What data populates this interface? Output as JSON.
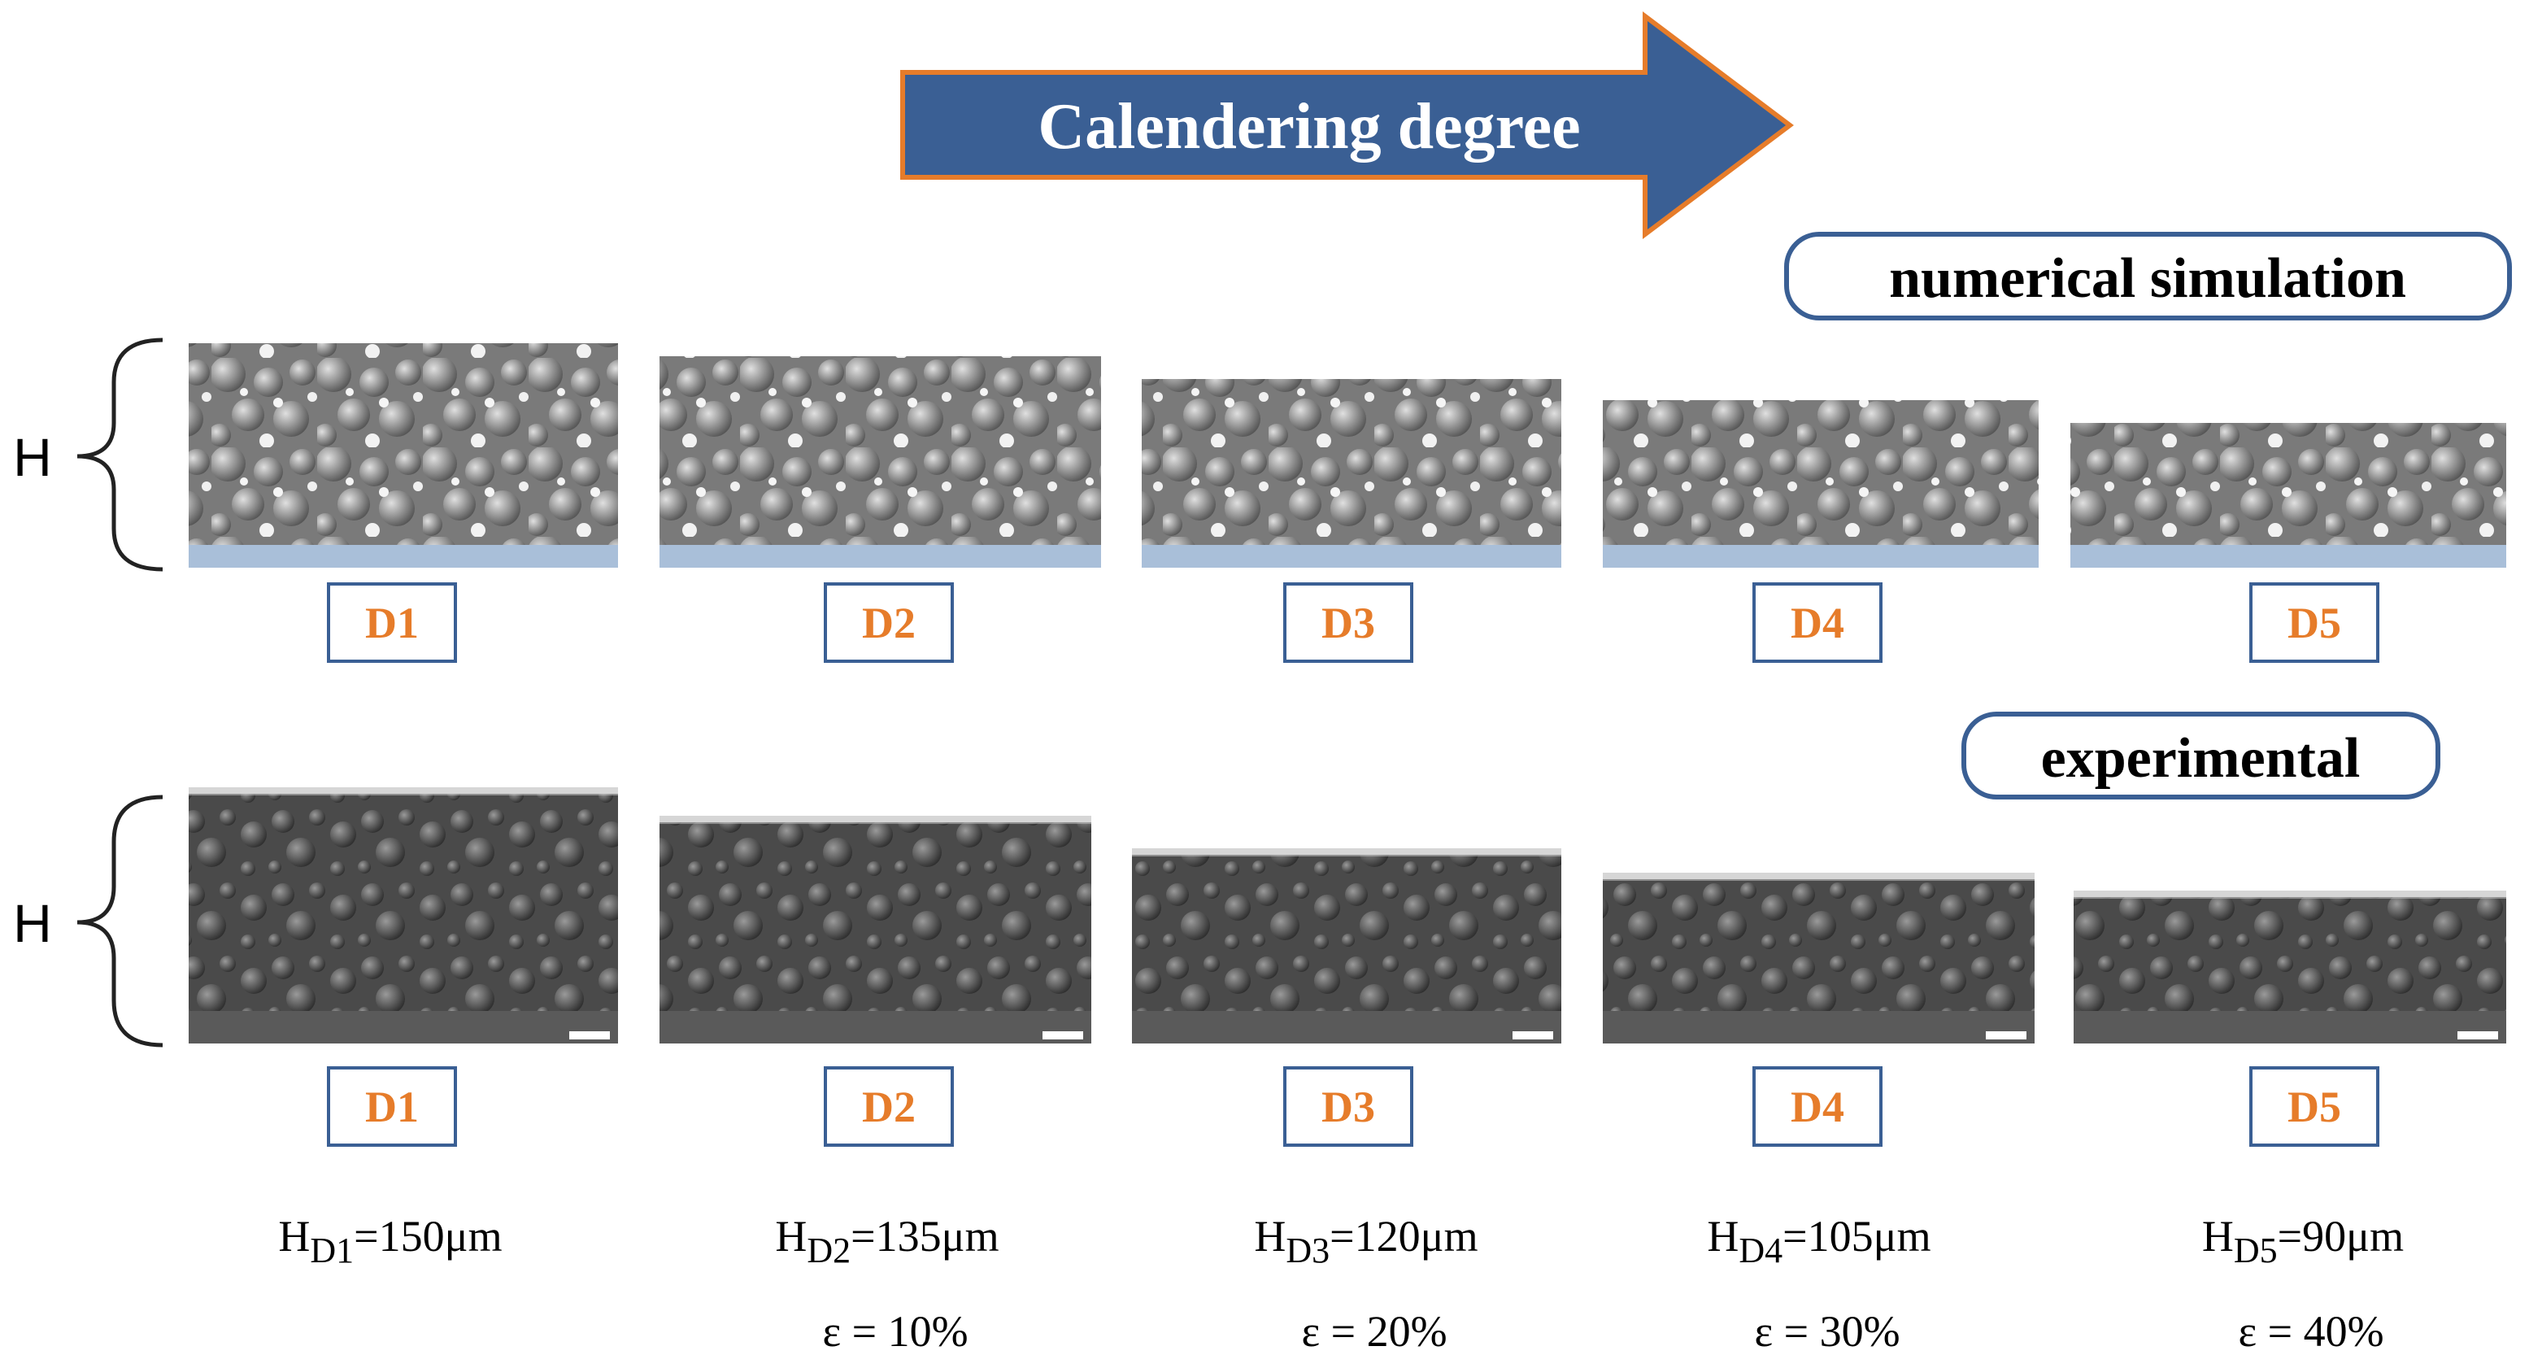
{
  "arrow_label": "Calendering degree",
  "sections": {
    "simulation": "numerical simulation",
    "experimental": "experimental"
  },
  "thickness_symbol": [
    "H",
    "H"
  ],
  "columns": [
    {
      "simulation_label": "D1",
      "experimental_label": "D1",
      "height": {
        "symbol": "H",
        "subscript": "D1",
        "value": "=150μm"
      }
    },
    {
      "simulation_label": "D2",
      "experimental_label": "D2",
      "height": {
        "symbol": "H",
        "subscript": "D2",
        "value": "=135μm"
      },
      "strain": "ε = 10%"
    },
    {
      "simulation_label": "D3",
      "experimental_label": "D3",
      "height": {
        "symbol": "H",
        "subscript": "D3",
        "value": "=120μm"
      },
      "strain": "ε = 20%"
    },
    {
      "simulation_label": "D4",
      "experimental_label": "D4",
      "height": {
        "symbol": "H",
        "subscript": "D4",
        "value": "=105μm"
      },
      "strain": "ε = 30%"
    },
    {
      "simulation_label": "D5",
      "experimental_label": "D5",
      "height": {
        "symbol": "H",
        "subscript": "D5",
        "value": "=90μm"
      },
      "strain": "ε = 40%"
    }
  ]
}
